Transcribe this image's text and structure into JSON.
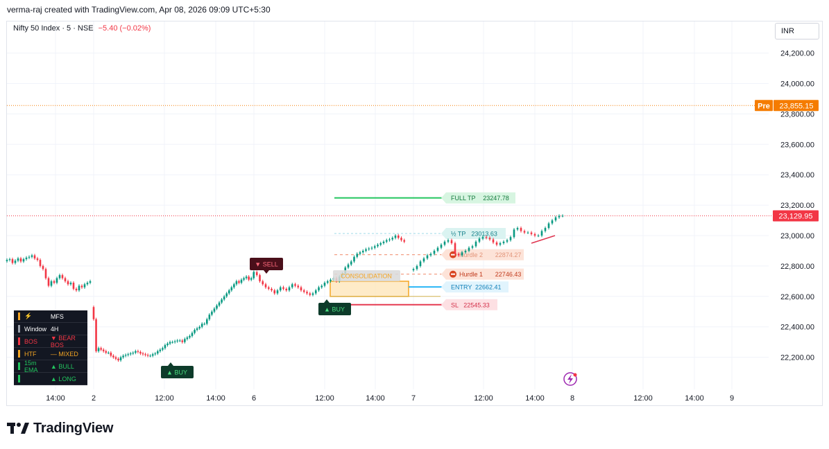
{
  "header": {
    "credit": "verma-raj created with TradingView.com, Apr 08, 2026 09:09 UTC+5:30",
    "symbol": "Nifty 50 Index · 5 · NSE",
    "change": "−5.40 (−0.02%)",
    "currency": "INR"
  },
  "brand": {
    "name": "TradingView",
    "icon": "tradingview-logo-icon"
  },
  "colors": {
    "up": "#089981",
    "down": "#f23645",
    "pre": "#f57c00",
    "tp": "#22c55e",
    "entry": "#29b6f6",
    "sl": "#e53950",
    "hurdle": "#f08a6a",
    "zone": "#f5a623"
  },
  "chart_data": {
    "type": "candlestick",
    "y_axis": {
      "ylim": [
        22000,
        24350
      ],
      "ticks": [
        22200,
        22400,
        22600,
        22800,
        23000,
        23200,
        23400,
        23600,
        23800,
        24000,
        24200
      ],
      "tick_labels": [
        "22,200.00",
        "22,400.00",
        "22,600.00",
        "22,800.00",
        "23,000.00",
        "23,200.00",
        "23,400.00",
        "23,600.00",
        "23,800.00",
        "24,000.00",
        "24,200.00"
      ]
    },
    "x_axis": {
      "tick_labels": [
        "14:00",
        "2",
        "12:00",
        "14:00",
        "6",
        "12:00",
        "14:00",
        "7",
        "12:00",
        "14:00",
        "8",
        "12:00",
        "14:00",
        "9"
      ]
    },
    "last_price": {
      "value": 23129.95,
      "label": "23,129.95"
    },
    "pre_price": {
      "value": 23855.15,
      "label": "23,855.15",
      "tag": "Pre"
    },
    "levels": [
      {
        "name": "full-tp",
        "label": "FULL TP",
        "value_label": "23247.78",
        "value": 23247.78
      },
      {
        "name": "half-tp",
        "label": "½ TP",
        "value_label": "23013.63",
        "value": 23013.63
      },
      {
        "name": "hurdle-2",
        "label": "Hurdle 2",
        "value_label": "22874.27",
        "value": 22874.27
      },
      {
        "name": "hurdle-1",
        "label": "Hurdle 1",
        "value_label": "22746.43",
        "value": 22746.43
      },
      {
        "name": "entry",
        "label": "ENTRY",
        "value_label": "22662.41",
        "value": 22662.41
      },
      {
        "name": "sl",
        "label": "SL",
        "value_label": "22545.33",
        "value": 22545.33
      }
    ],
    "annotations": [
      {
        "name": "sell-signal",
        "text": "▼ SELL"
      },
      {
        "name": "buy-signal-1",
        "text": "▲ BUY"
      },
      {
        "name": "buy-signal-2",
        "text": "▲ BUY"
      },
      {
        "name": "consolidation-label",
        "text": "CONSOLIDATION"
      }
    ],
    "series": [
      {
        "segment": "day-1",
        "closes": [
          22840,
          22845,
          22820,
          22835,
          22850,
          22830,
          22845,
          22855,
          22860,
          22870,
          22850,
          22840,
          22800,
          22780,
          22720,
          22670,
          22700,
          22690,
          22720,
          22740,
          22720,
          22700,
          22680,
          22690,
          22650,
          22640,
          22670,
          22660,
          22680,
          22690,
          22700
        ]
      },
      {
        "segment": "day-2",
        "closes": [
          22450,
          22240,
          22260,
          22250,
          22240,
          22230,
          22230,
          22210,
          22200,
          22190,
          22180,
          22200,
          22210,
          22215,
          22220,
          22225,
          22230,
          22240,
          22235,
          22225,
          22220,
          22215,
          22210,
          22210,
          22220,
          22225,
          22240,
          22250,
          22260,
          22280,
          22290,
          22300,
          22300,
          22305,
          22310,
          22310,
          22300,
          22320,
          22330,
          22340,
          22360,
          22380,
          22390,
          22400,
          22420,
          22420,
          22450,
          22480,
          22500,
          22520,
          22540,
          22560,
          22580,
          22600,
          22620,
          22640,
          22660,
          22680,
          22700,
          22690,
          22710,
          22720,
          22730,
          22710,
          22720,
          22760
        ]
      },
      {
        "segment": "day-3",
        "closes": [
          22760,
          22740,
          22700,
          22680,
          22660,
          22650,
          22640,
          22620,
          22640,
          22660,
          22650,
          22640,
          22660,
          22680,
          22670,
          22660,
          22640,
          22630,
          22620,
          22610,
          22620,
          22640,
          22660,
          22670,
          22690,
          22700,
          22710,
          22720,
          22700,
          22730,
          22750,
          22790,
          22810,
          22830,
          22860,
          22880,
          22890,
          22900,
          22910,
          22915,
          22920,
          22930,
          22940,
          22950,
          22960,
          22970,
          22975,
          22985,
          23000,
          22985,
          22970,
          22960
        ]
      },
      {
        "segment": "day-4",
        "closes": [
          22780,
          22800,
          22830,
          22850,
          22870,
          22880,
          22900,
          22920,
          22940,
          22960,
          22970,
          22950,
          22880,
          22870,
          22890,
          22900,
          22920,
          22930,
          22960,
          22980,
          22990,
          22985,
          22975,
          22955,
          22940,
          22950,
          22960,
          22970,
          22990,
          23040,
          23050,
          23030,
          23020,
          23020,
          23010,
          23000,
          23000,
          23030,
          23050,
          23080,
          23100,
          23120,
          23130,
          23130
        ]
      }
    ]
  },
  "info_panel": {
    "rows": [
      {
        "key": "⚡",
        "value": "MFS",
        "color": "#f5a623"
      },
      {
        "key": "Window",
        "value": "4H",
        "color": "#9aa0aa"
      },
      {
        "key": "BOS",
        "value": "▼ BEAR BOS",
        "color": "#f23645"
      },
      {
        "key": "HTF",
        "value": "— MIXED",
        "color": "#f5a623"
      },
      {
        "key": "15m EMA",
        "value": "▲ BULL",
        "color": "#22c55e"
      },
      {
        "key": "",
        "value": "▲ LONG",
        "color": "#22c55e"
      }
    ]
  }
}
